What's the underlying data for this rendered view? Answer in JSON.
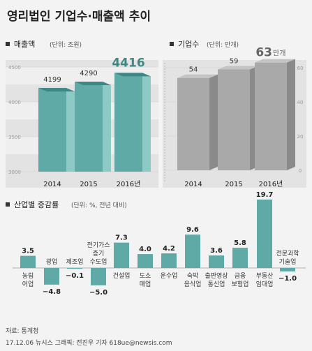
{
  "title": "영리법인 기업수·매출액 추이",
  "colors": {
    "teal": "#5fa9a6",
    "teal_dark": "#3e8784",
    "teal_light": "#8dcac6",
    "gray_bar": "#a9a9a9",
    "gray_bar_side": "#8a8a8a",
    "panel_bg": "#e3e3e3",
    "band_light": "#efefef",
    "axis_text": "#999999"
  },
  "chart_data": [
    {
      "type": "bar",
      "title": "매출액",
      "unit": "(단위: 조원)",
      "categories": [
        "2014",
        "2015",
        "2016년"
      ],
      "values": [
        4199,
        4290,
        4416
      ],
      "value_labels": [
        "4199",
        "4290",
        "4416"
      ],
      "ylim": [
        3000,
        4500
      ],
      "yticks": [
        "4500",
        "4000",
        "3500",
        "3000"
      ],
      "highlight_index": 2
    },
    {
      "type": "bar",
      "title": "기업수",
      "unit": "(단위: 만개)",
      "categories": [
        "2014",
        "2015",
        "2016년"
      ],
      "values": [
        54,
        59,
        63
      ],
      "value_labels": [
        "54",
        "59",
        "63"
      ],
      "value_suffix": "만개",
      "ylim": [
        0,
        60
      ],
      "yticks": [
        "60",
        "40",
        "20",
        "0"
      ],
      "highlight_index": 2
    },
    {
      "type": "bar",
      "title": "산업별 증감률",
      "unit": "(단위: %, 전년 대비)",
      "categories": [
        "농림어업",
        "광업",
        "제조업",
        "전기가스증기수도업",
        "건설업",
        "도소매업",
        "운수업",
        "숙박음식업",
        "출판영상통신업",
        "금융보험업",
        "부동산임대업",
        "전문과학기술업"
      ],
      "category_lines": [
        [
          "농림",
          "어업"
        ],
        [
          "광업"
        ],
        [
          "제조업"
        ],
        [
          "전기가스",
          "증기",
          "수도업"
        ],
        [
          "건설업"
        ],
        [
          "도소",
          "매업"
        ],
        [
          "운수업"
        ],
        [
          "숙박",
          "음식업"
        ],
        [
          "출판영상",
          "통신업"
        ],
        [
          "금융",
          "보험업"
        ],
        [
          "부동산",
          "임대업"
        ],
        [
          "전문과학",
          "기술업"
        ]
      ],
      "values": [
        3.5,
        -4.8,
        -0.1,
        -5.0,
        7.3,
        4.0,
        4.2,
        9.6,
        3.6,
        5.8,
        19.7,
        -1.0
      ],
      "value_labels": [
        "3.5",
        "−4.8",
        "−0.1",
        "−5.0",
        "7.3",
        "4.0",
        "4.2",
        "9.6",
        "3.6",
        "5.8",
        "19.7",
        "−1.0"
      ]
    }
  ],
  "footer": {
    "source": "자료: 통계청",
    "credit": "17.12.06 뉴시스 그래픽: 전진우 기자 618ue@newsis.com"
  }
}
